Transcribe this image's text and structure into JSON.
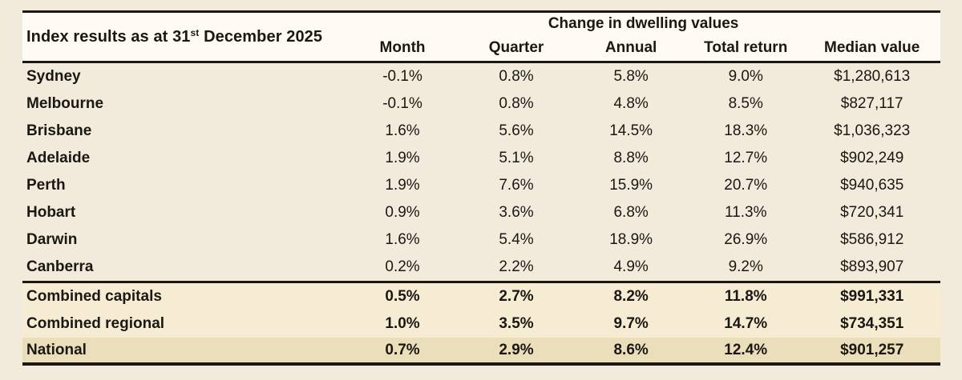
{
  "table": {
    "title_part1": "Index results as at 31",
    "title_superscript": "st",
    "title_part2": " December 2025",
    "group_header": "Change in dwelling values",
    "columns": [
      "Month",
      "Quarter",
      "Annual",
      "Total return",
      "Median value"
    ],
    "rows": [
      {
        "label": "Sydney",
        "variant": "city",
        "values": [
          "-0.1%",
          "0.8%",
          "5.8%",
          "9.0%",
          "$1,280,613"
        ]
      },
      {
        "label": "Melbourne",
        "variant": "city",
        "values": [
          "-0.1%",
          "0.8%",
          "4.8%",
          "8.5%",
          "$827,117"
        ]
      },
      {
        "label": "Brisbane",
        "variant": "city",
        "values": [
          "1.6%",
          "5.6%",
          "14.5%",
          "18.3%",
          "$1,036,323"
        ]
      },
      {
        "label": "Adelaide",
        "variant": "city",
        "values": [
          "1.9%",
          "5.1%",
          "8.8%",
          "12.7%",
          "$902,249"
        ]
      },
      {
        "label": "Perth",
        "variant": "city",
        "values": [
          "1.9%",
          "7.6%",
          "15.9%",
          "20.7%",
          "$940,635"
        ]
      },
      {
        "label": "Hobart",
        "variant": "city",
        "values": [
          "0.9%",
          "3.6%",
          "6.8%",
          "11.3%",
          "$720,341"
        ]
      },
      {
        "label": "Darwin",
        "variant": "city",
        "values": [
          "1.6%",
          "5.4%",
          "18.9%",
          "26.9%",
          "$586,912"
        ]
      },
      {
        "label": "Canberra",
        "variant": "city",
        "values": [
          "0.2%",
          "2.2%",
          "4.9%",
          "9.2%",
          "$893,907"
        ]
      },
      {
        "label": "Combined capitals",
        "variant": "summary",
        "values": [
          "0.5%",
          "2.7%",
          "8.2%",
          "11.8%",
          "$991,331"
        ]
      },
      {
        "label": "Combined regional",
        "variant": "summary",
        "values": [
          "1.0%",
          "3.5%",
          "9.7%",
          "14.7%",
          "$734,351"
        ]
      },
      {
        "label": "National",
        "variant": "national",
        "values": [
          "0.7%",
          "2.9%",
          "8.6%",
          "12.4%",
          "$901,257"
        ]
      }
    ]
  },
  "colors": {
    "page_background": "#f2ebdb",
    "header_background": "#fdfbf4",
    "summary_row_background": "#f6ecd3",
    "national_row_background": "#ebdebb",
    "text_and_borders": "#1b1713"
  },
  "chart_data": {
    "type": "table",
    "title": "Index results as at 31st December 2025",
    "group_header": "Change in dwelling values",
    "columns": [
      "Month",
      "Quarter",
      "Annual",
      "Total return",
      "Median value"
    ],
    "rows": [
      [
        "Sydney",
        "-0.1%",
        "0.8%",
        "5.8%",
        "9.0%",
        "$1,280,613"
      ],
      [
        "Melbourne",
        "-0.1%",
        "0.8%",
        "4.8%",
        "8.5%",
        "$827,117"
      ],
      [
        "Brisbane",
        "1.6%",
        "5.6%",
        "14.5%",
        "18.3%",
        "$1,036,323"
      ],
      [
        "Adelaide",
        "1.9%",
        "5.1%",
        "8.8%",
        "12.7%",
        "$902,249"
      ],
      [
        "Perth",
        "1.9%",
        "7.6%",
        "15.9%",
        "20.7%",
        "$940,635"
      ],
      [
        "Hobart",
        "0.9%",
        "3.6%",
        "6.8%",
        "11.3%",
        "$720,341"
      ],
      [
        "Darwin",
        "1.6%",
        "5.4%",
        "18.9%",
        "26.9%",
        "$586,912"
      ],
      [
        "Canberra",
        "0.2%",
        "2.2%",
        "4.9%",
        "9.2%",
        "$893,907"
      ],
      [
        "Combined capitals",
        "0.5%",
        "2.7%",
        "8.2%",
        "11.8%",
        "$991,331"
      ],
      [
        "Combined regional",
        "1.0%",
        "3.5%",
        "9.7%",
        "14.7%",
        "$734,351"
      ],
      [
        "National",
        "0.7%",
        "2.9%",
        "8.6%",
        "12.4%",
        "$901,257"
      ]
    ]
  }
}
